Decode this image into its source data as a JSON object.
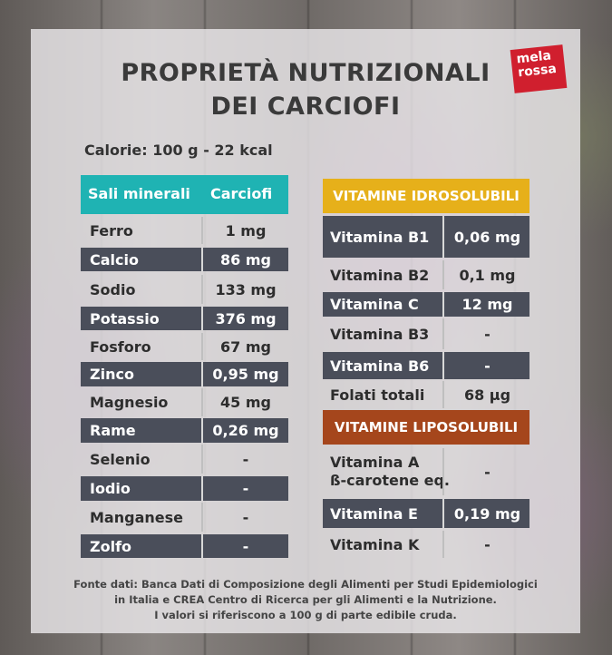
{
  "logo": {
    "line1": "mela",
    "line2": "rossa"
  },
  "title": {
    "line1": "PROPRIETÀ NUTRIZIONALI",
    "line2": "DEI CARCIOFI"
  },
  "calorie": "Calorie: 100 g - 22 kcal",
  "minerals": {
    "header_name": "Sali minerali",
    "header_value": "Carciofi",
    "rows": [
      {
        "name": "Ferro",
        "value": "1 mg"
      },
      {
        "name": "Calcio",
        "value": "86 mg"
      },
      {
        "name": "Sodio",
        "value": "133 mg"
      },
      {
        "name": "Potassio",
        "value": "376 mg"
      },
      {
        "name": "Fosforo",
        "value": "67 mg"
      },
      {
        "name": "Zinco",
        "value": "0,95  mg"
      },
      {
        "name": "Magnesio",
        "value": "45 mg"
      },
      {
        "name": "Rame",
        "value": "0,26 mg"
      },
      {
        "name": "Selenio",
        "value": "-"
      },
      {
        "name": "Iodio",
        "value": "-"
      },
      {
        "name": "Manganese",
        "value": "-"
      },
      {
        "name": "Zolfo",
        "value": "-"
      }
    ]
  },
  "vitamins_water": {
    "header": "VITAMINE IDROSOLUBILI",
    "rows": [
      {
        "name": "Vitamina B1",
        "value": "0,06 mg"
      },
      {
        "name": "Vitamina B2",
        "value": "0,1 mg"
      },
      {
        "name": "Vitamina C",
        "value": "12 mg"
      },
      {
        "name": "Vitamina B3",
        "value": "-"
      },
      {
        "name": "Vitamina B6",
        "value": "-"
      },
      {
        "name": "Folati totali",
        "value": "68 µg"
      }
    ]
  },
  "vitamins_fat": {
    "header": "VITAMINE LIPOSOLUBILI",
    "rows": [
      {
        "name_line1": "Vitamina A",
        "name_line2": "ß-carotene eq.",
        "value": "-"
      },
      {
        "name": "Vitamina E",
        "value": "0,19 mg"
      },
      {
        "name": "Vitamina K",
        "value": "-"
      }
    ]
  },
  "footer": {
    "line1": "Fonte dati: Banca Dati di Composizione degli Alimenti per Studi Epidemiologici",
    "line2": "in Italia e CREA Centro di Ricerca per gli Alimenti e la Nutrizione.",
    "line3": "I valori si riferiscono a 100 g di parte edibile cruda."
  },
  "colors": {
    "teal": "#1fb3b3",
    "yellow": "#e6b01a",
    "rust": "#a5461c",
    "dark_row": "#4a4e5a",
    "logo_red": "#d01f2e"
  }
}
